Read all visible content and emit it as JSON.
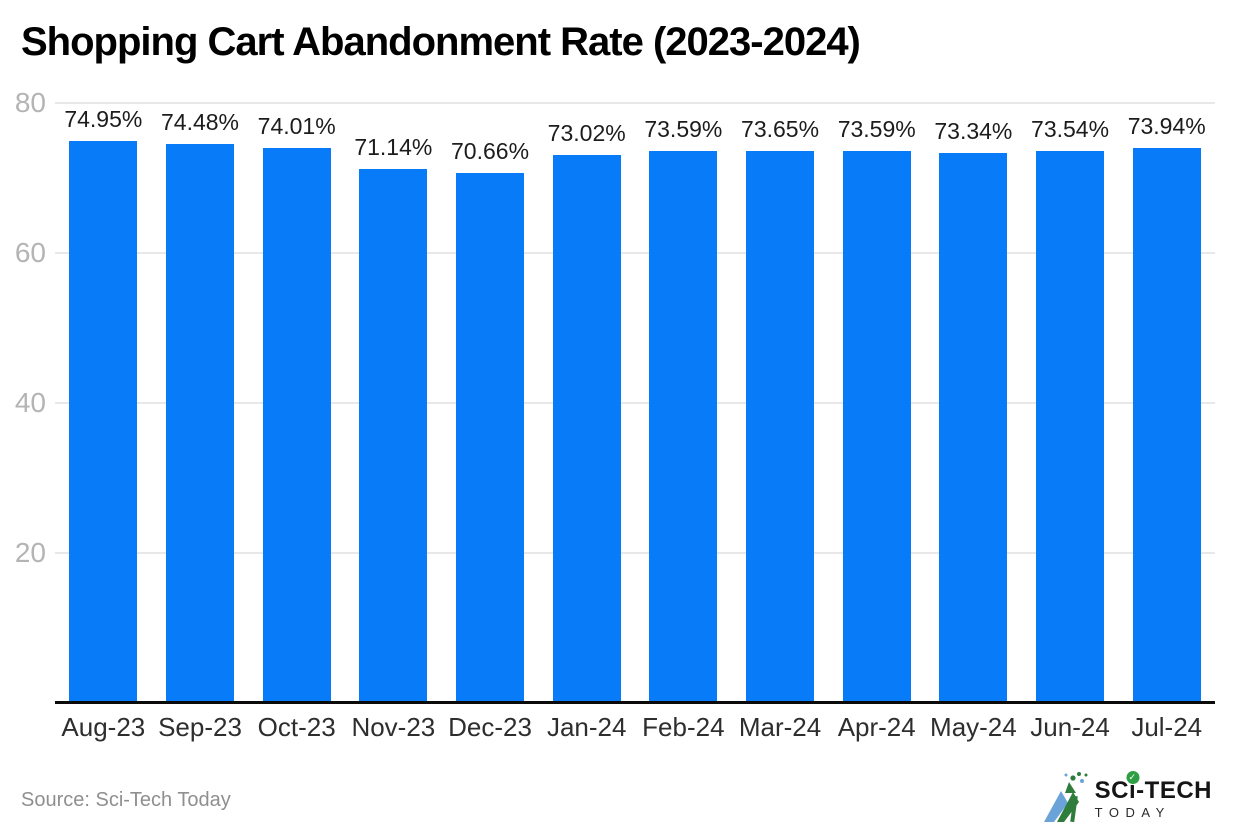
{
  "title": "Shopping Cart Abandonment Rate (2023-2024)",
  "source_note": "Source: Sci-Tech Today",
  "colors": {
    "bar": "#077bf8",
    "gridline": "#e8e8e8",
    "baseline": "#0a0a0a",
    "ytick_text": "#b4b4b4",
    "xlabel_text": "#2e2e2e",
    "value_text": "#1c1c1c",
    "source_text": "#8f8f8f",
    "logo_green": "#2e9e44",
    "logo_blue": "#6aa3d8"
  },
  "logo": {
    "brand_prefix": "SC",
    "brand_i": "i",
    "brand_suffix": "-TECH",
    "brand_sub": "TODAY",
    "check_glyph": "✓",
    "mark_icon": "sci-tech-triangle-logo"
  },
  "chart_data": {
    "type": "bar",
    "title": "Shopping Cart Abandonment Rate (2023-2024)",
    "categories": [
      "Aug-23",
      "Sep-23",
      "Oct-23",
      "Nov-23",
      "Dec-23",
      "Jan-24",
      "Feb-24",
      "Mar-24",
      "Apr-24",
      "May-24",
      "Jun-24",
      "Jul-24"
    ],
    "values": [
      74.95,
      74.48,
      74.01,
      71.14,
      70.66,
      73.02,
      73.59,
      73.65,
      73.59,
      73.34,
      73.54,
      73.94
    ],
    "bar_labels": [
      "74.95%",
      "74.48%",
      "74.01%",
      "71.14%",
      "70.66%",
      "73.02%",
      "73.59%",
      "73.65%",
      "73.59%",
      "73.34%",
      "73.54%",
      "73.94%"
    ],
    "xlabel": "",
    "ylabel": "",
    "ylim": [
      0,
      80
    ],
    "yticks": [
      20,
      40,
      60,
      80
    ],
    "grid": true,
    "legend": false,
    "bar_color": "#077bf8",
    "value_label_suffix": "%"
  }
}
